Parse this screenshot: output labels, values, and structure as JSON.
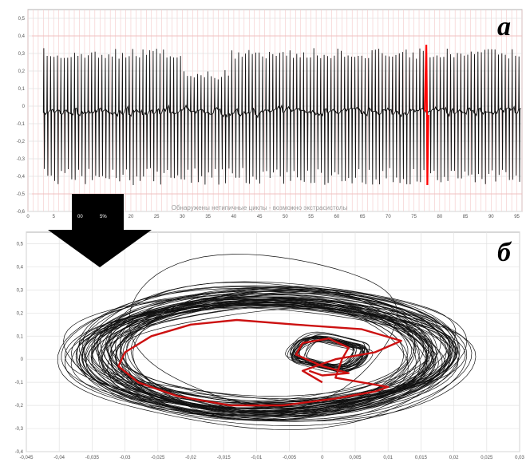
{
  "chart_data": [
    {
      "type": "line",
      "panel_label": "а",
      "caption": "Обнаружены нетипичные циклы - возможно экстрасистолы",
      "xlim": [
        0,
        96
      ],
      "ylim": [
        -0.6,
        0.55
      ],
      "x_ticks": [
        0,
        5,
        10,
        15,
        20,
        25,
        30,
        35,
        40,
        45,
        50,
        55,
        60,
        65,
        70,
        75,
        80,
        85,
        90,
        95
      ],
      "y_ticks": [
        0.5,
        0.4,
        0.3,
        0.2,
        0.1,
        0,
        -0.1,
        -0.2,
        -0.3,
        -0.4,
        -0.5,
        -0.6
      ],
      "grid": true,
      "series": [
        {
          "color": "#111111",
          "cycle_count": 140,
          "x_range": [
            3,
            96
          ],
          "amplitude": [
            -0.45,
            0.33
          ]
        },
        {
          "color": "#ff0000",
          "highlight_cycle_x": 77.5,
          "amplitude": [
            -0.45,
            0.4
          ]
        }
      ]
    },
    {
      "type": "line",
      "panel_label": "б",
      "xlim": [
        -0.045,
        0.03
      ],
      "ylim": [
        -0.4,
        0.55
      ],
      "x_ticks": [
        -0.045,
        -0.04,
        -0.035,
        -0.03,
        -0.025,
        -0.02,
        -0.015,
        -0.01,
        -0.005,
        0,
        0.005,
        0.01,
        0.015,
        0.02,
        0.025,
        0.03
      ],
      "y_ticks": [
        0.5,
        0.4,
        0.3,
        0.2,
        0.1,
        0,
        -0.1,
        -0.2,
        -0.3,
        -0.4
      ],
      "grid": true,
      "series": [
        {
          "color": "#111111",
          "loop_count": 60
        },
        {
          "color": "#cc1111",
          "highlighted": true
        }
      ]
    }
  ],
  "arrow": {
    "color": "#000000",
    "direction": "down",
    "inset_labels": [
      "00",
      "5%"
    ]
  }
}
